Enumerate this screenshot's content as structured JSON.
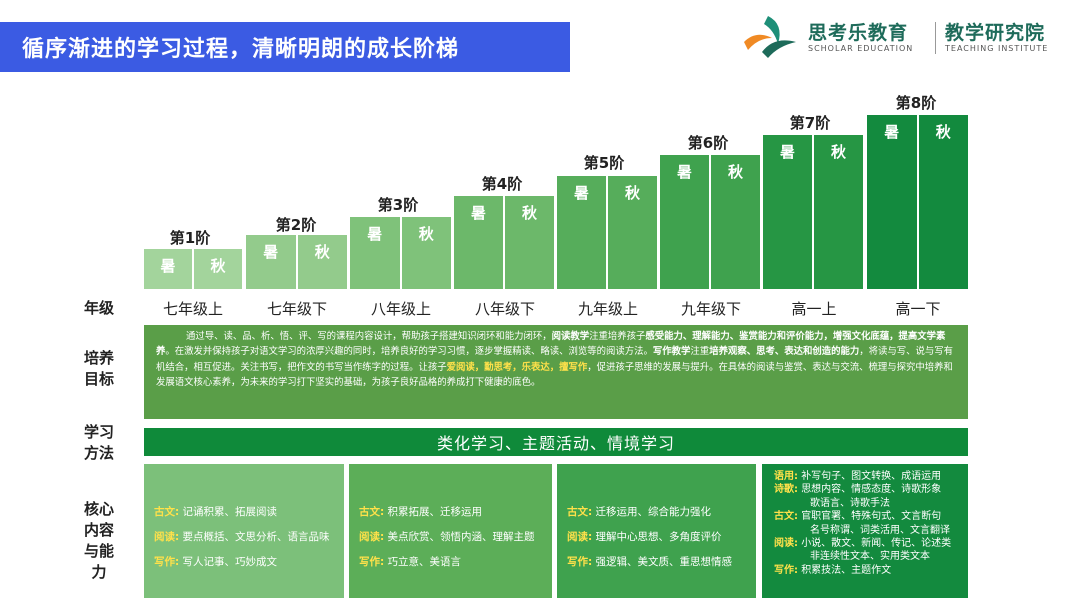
{
  "title": "循序渐进的学习过程，清晰明朗的成长阶梯",
  "logo": {
    "name_cn": "思考乐教育",
    "name_en": "SCHOLAR EDUCATION",
    "sub_cn": "教学研究院",
    "sub_en": "TEACHING INSTITUTE"
  },
  "steps": [
    {
      "label": "第1阶",
      "left": "暑",
      "right": "秋"
    },
    {
      "label": "第2阶",
      "left": "暑",
      "right": "秋"
    },
    {
      "label": "第3阶",
      "left": "暑",
      "right": "秋"
    },
    {
      "label": "第4阶",
      "left": "暑",
      "right": "秋"
    },
    {
      "label": "第5阶",
      "left": "暑",
      "right": "秋"
    },
    {
      "label": "第6阶",
      "left": "暑",
      "right": "秋"
    },
    {
      "label": "第7阶",
      "left": "暑",
      "right": "秋"
    },
    {
      "label": "第8阶",
      "left": "暑",
      "right": "秋"
    }
  ],
  "row_labels": {
    "grade": "年级",
    "goal": "培养目标",
    "method": "学习方法",
    "core": "核心内容与能力"
  },
  "grades": [
    "七年级上",
    "七年级下",
    "八年级上",
    "八年级下",
    "九年级上",
    "九年级下",
    "高一上",
    "高一下"
  ],
  "goal": {
    "p1": "通过导、读、品、析、悟、评、写的课程内容设计，帮助孩子搭建知识闭环和能力闭环，",
    "b1": "阅读教学",
    "p2": "注重培养孩子",
    "b2": "感受能力、理解能力、鉴赏能力和评价能力，增强文化底蕴，提高文学素养",
    "p3": "。在激发并保持孩子对语文学习的浓厚兴趣的同时，培养良好的学习习惯，逐步掌握精读、略读、浏览等的阅读方法。",
    "b3": "写作教学",
    "p4": "注重",
    "b4": "培养观察、思考、表达和创造的能力",
    "p5": "，将读与写、说与写有机结合，相互促进。关注书写，把作文的书写当作练字的过程。让孩子",
    "y1": "爱阅读，勤思考，乐表达，擅写作",
    "p6": "，促进孩子思维的发展与提升。在具体的阅读与鉴赏、表达与交流、梳理与探究中培养和发展语文核心素养，为未来的学习打下坚实的基础，为孩子良好品格的养成打下健康的底色。"
  },
  "method": "类化学习、主题活动、情境学习",
  "core": [
    {
      "items": [
        {
          "label": "古文:",
          "text": "记诵积累、拓展阅读"
        },
        {
          "label": "阅读:",
          "text": "要点概括、文思分析、语言品味"
        },
        {
          "label": "写作:",
          "text": "写人记事、巧妙成文"
        }
      ]
    },
    {
      "items": [
        {
          "label": "古文:",
          "text": "积累拓展、迁移运用"
        },
        {
          "label": "阅读:",
          "text": "美点欣赏、领悟内涵、理解主题"
        },
        {
          "label": "写作:",
          "text": "巧立意、美语言"
        }
      ]
    },
    {
      "items": [
        {
          "label": "古文:",
          "text": "迁移运用、综合能力强化"
        },
        {
          "label": "阅读:",
          "text": "理解中心思想、多角度评价"
        },
        {
          "label": "写作:",
          "text": "强逻辑、美文质、重思想情感"
        }
      ]
    },
    {
      "lines": [
        {
          "label": "语用:",
          "text": "补写句子、图文转换、成语运用"
        },
        {
          "label": "诗歌:",
          "text": "思想内容、情感态度、诗歌形象"
        },
        {
          "label": "",
          "text": "歌语言、诗歌手法"
        },
        {
          "label": "古文:",
          "text": "官职官署、特殊句式、文言断句"
        },
        {
          "label": "",
          "text": "名号称谓、词类活用、文言翻译"
        },
        {
          "label": "阅读:",
          "text": "小说、散文、新闻、传记、论述类"
        },
        {
          "label": "",
          "text": "非连续性文本、实用类文本"
        },
        {
          "label": "写作:",
          "text": "积累技法、主题作文"
        }
      ]
    }
  ],
  "colors": {
    "banner": "#3b5be3",
    "step_1": "#9fd19a",
    "step_8": "#138a3e",
    "goal_bg": "#5a9e48",
    "method_bg": "#0f8a3a",
    "highlight": "#ffe14a"
  }
}
